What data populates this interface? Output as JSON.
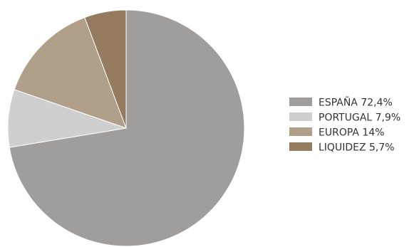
{
  "chart_data": {
    "type": "pie",
    "title": "",
    "legend_position": "right",
    "start_angle": "top, clockwise",
    "slices": [
      {
        "label": "ESPAÑA 72,4%",
        "category": "ESPAÑA",
        "value": 72.4,
        "color": "#9f9e9c"
      },
      {
        "label": "PORTUGAL 7,9%",
        "category": "PORTUGAL",
        "value": 7.9,
        "color": "#cfcfcf"
      },
      {
        "label": "EUROPA 14%",
        "category": "EUROPA",
        "value": 14,
        "color": "#b0a08a"
      },
      {
        "label": "LIQUIDEZ 5,7%",
        "category": "LIQUIDEZ",
        "value": 5.7,
        "color": "#957b5f"
      }
    ]
  }
}
